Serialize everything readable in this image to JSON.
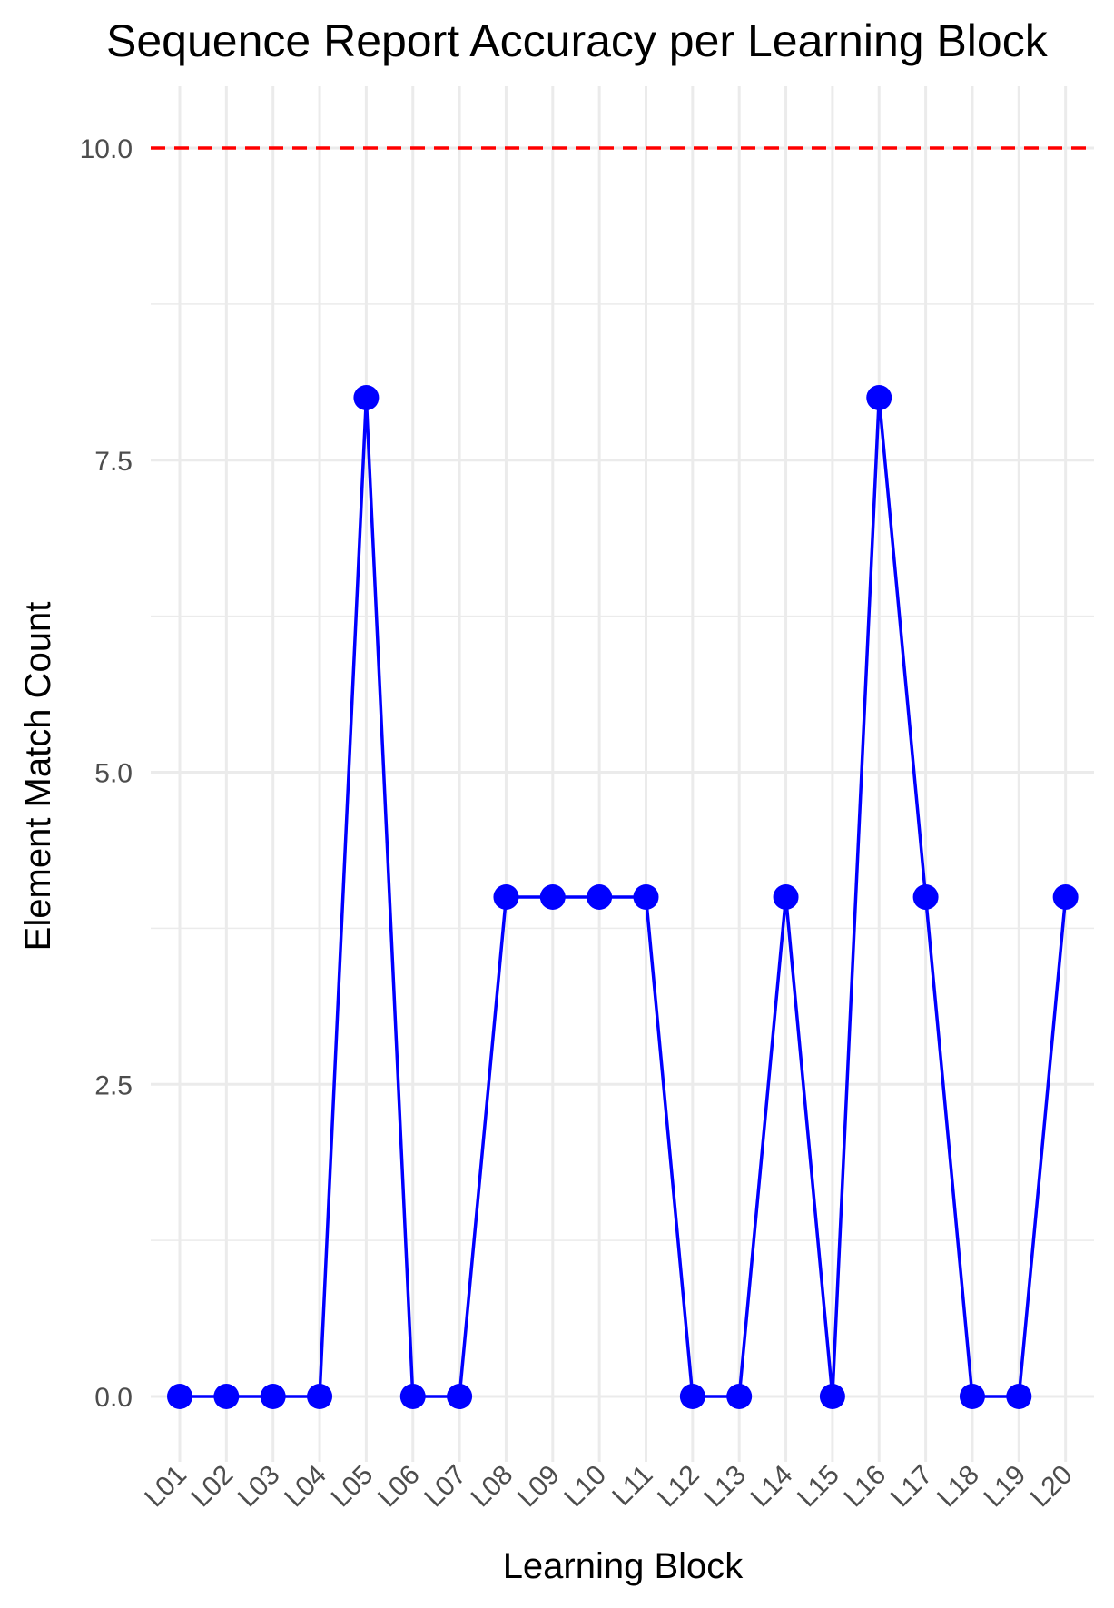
{
  "chart_data": {
    "type": "line",
    "title": "Sequence Report Accuracy per Learning Block",
    "xlabel": "Learning Block",
    "ylabel": "Element Match Count",
    "categories": [
      "L01",
      "L02",
      "L03",
      "L04",
      "L05",
      "L06",
      "L07",
      "L08",
      "L09",
      "L10",
      "L11",
      "L12",
      "L13",
      "L14",
      "L15",
      "L16",
      "L17",
      "L18",
      "L19",
      "L20"
    ],
    "values": [
      0,
      0,
      0,
      0,
      8,
      0,
      0,
      4,
      4,
      4,
      4,
      0,
      0,
      4,
      0,
      8,
      4,
      0,
      0,
      4
    ],
    "ylim": [
      -0.8,
      10.5
    ],
    "yticks": [
      "0.0",
      "2.5",
      "5.0",
      "7.5",
      "10.0"
    ],
    "ytick_values": [
      0,
      2.5,
      5,
      7.5,
      10
    ],
    "reference_line": {
      "y": 10,
      "style": "dashed",
      "color": "#ff0000"
    },
    "series_color": "#0000ff",
    "grid": true,
    "legend": "none"
  }
}
